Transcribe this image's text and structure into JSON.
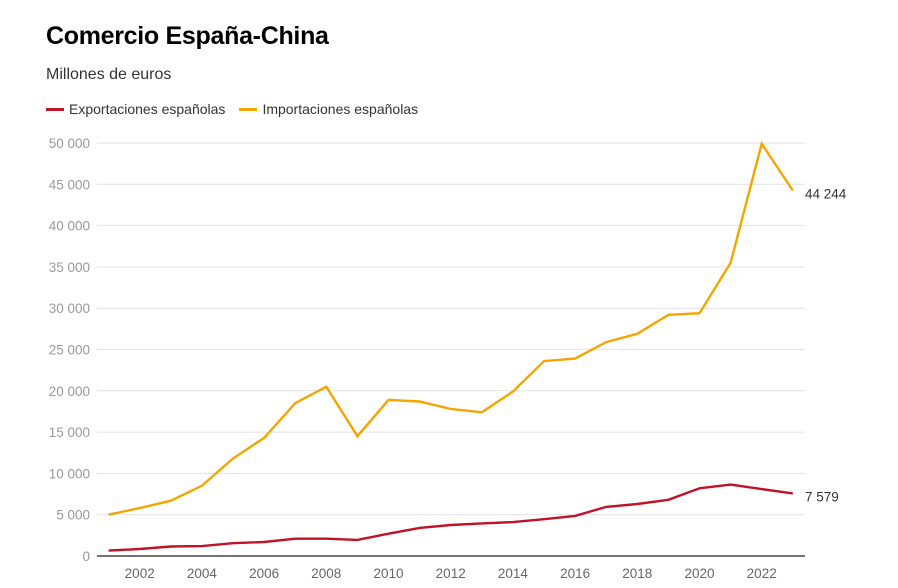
{
  "chart_data": {
    "type": "line",
    "title": "Comercio España-China",
    "subtitle": "Millones de euros",
    "xlabel": "",
    "ylabel": "",
    "x": [
      2001,
      2002,
      2003,
      2004,
      2005,
      2006,
      2007,
      2008,
      2009,
      2010,
      2011,
      2012,
      2013,
      2014,
      2015,
      2016,
      2017,
      2018,
      2019,
      2020,
      2021,
      2022,
      2023
    ],
    "xticks": [
      "2002",
      "2004",
      "2006",
      "2008",
      "2010",
      "2012",
      "2014",
      "2016",
      "2018",
      "2020",
      "2022"
    ],
    "yticks": [
      "0",
      "5 000",
      "10 000",
      "15 000",
      "20 000",
      "25 000",
      "30 000",
      "35 000",
      "40 000",
      "45 000",
      "50 000"
    ],
    "ylim": [
      0,
      50000
    ],
    "grid": true,
    "legend_position": "top-left",
    "series": [
      {
        "name": "Exportaciones españolas",
        "color": "#c0132a",
        "values": [
          650,
          850,
          1150,
          1200,
          1550,
          1700,
          2100,
          2100,
          1950,
          2700,
          3400,
          3750,
          3950,
          4100,
          4450,
          4850,
          5950,
          6300,
          6800,
          8200,
          8650,
          8100,
          7579
        ],
        "end_label": "7 579"
      },
      {
        "name": "Importaciones españolas",
        "color": "#f5a500",
        "values": [
          5000,
          5800,
          6700,
          8500,
          11800,
          14300,
          18500,
          20500,
          14500,
          18900,
          18700,
          17800,
          17400,
          19900,
          23600,
          23900,
          25900,
          26900,
          29200,
          29400,
          35500,
          49900,
          44244
        ],
        "end_label": "44 244"
      }
    ]
  }
}
